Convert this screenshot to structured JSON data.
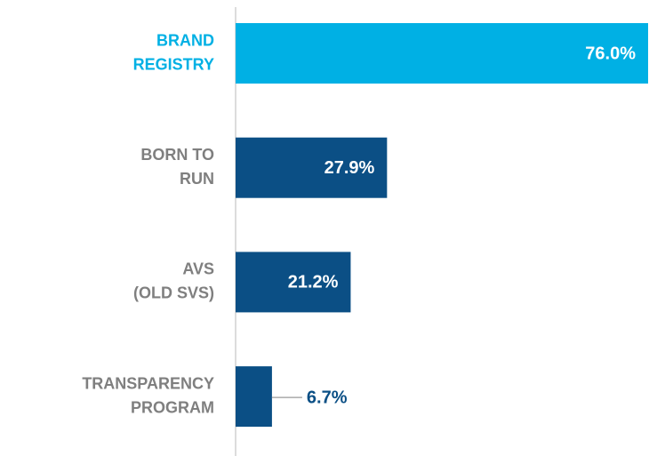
{
  "chart_data": {
    "type": "bar",
    "orientation": "horizontal",
    "categories": [
      [
        "BRAND",
        "REGISTRY"
      ],
      [
        "BORN TO",
        "RUN"
      ],
      [
        "AVS",
        "(OLD SVS)"
      ],
      [
        "TRANSPARENCY",
        "PROGRAM"
      ]
    ],
    "values": [
      76.0,
      27.9,
      21.2,
      6.7
    ],
    "value_labels": [
      "76.0%",
      "27.9%",
      "21.2%",
      "6.7%"
    ],
    "colors": [
      "#00b0e4",
      "#0b4f85",
      "#0b4f85",
      "#0b4f85"
    ],
    "label_colors": [
      "#00b0e4",
      "#7f7f7f",
      "#7f7f7f",
      "#7f7f7f"
    ],
    "xlim": [
      0,
      76
    ]
  }
}
